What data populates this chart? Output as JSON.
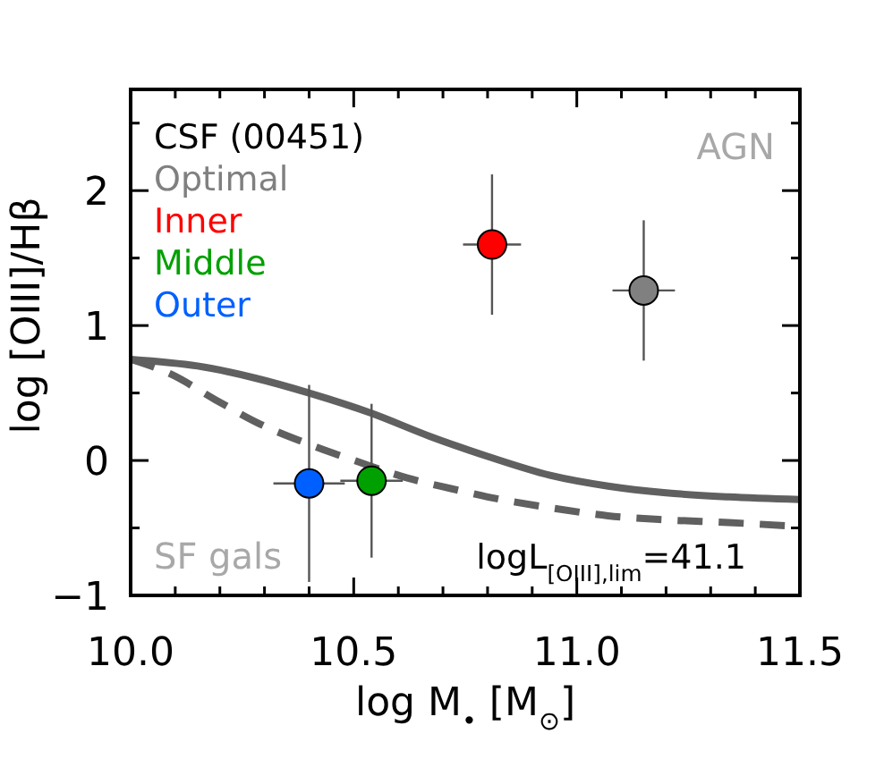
{
  "chart_data": {
    "type": "scatter",
    "xlabel": "log M$_{•}$ [M$_{⊙}$]",
    "ylabel": "log [OIII]/Hβ",
    "xlim": [
      10,
      11.5
    ],
    "ylim": [
      -1,
      2.75
    ],
    "xticks": [
      {
        "value": 10,
        "label": "10.0"
      },
      {
        "value": 10.1,
        "label": null
      },
      {
        "value": 10.2,
        "label": null
      },
      {
        "value": 10.3,
        "label": null
      },
      {
        "value": 10.4,
        "label": null
      },
      10.5,
      {
        "value": 10.6,
        "label": null
      },
      {
        "value": 10.7,
        "label": null
      },
      {
        "value": 10.8,
        "label": null
      },
      {
        "value": 10.9,
        "label": null
      },
      {
        "value": 11,
        "label": "11.0"
      },
      {
        "value": 11.1,
        "label": null
      },
      {
        "value": 11.2,
        "label": null
      },
      {
        "value": 11.3,
        "label": null
      },
      {
        "value": 11.4,
        "label": null
      },
      11.5
    ],
    "yticks": [
      {
        "value": -1,
        "label": "−1"
      },
      {
        "value": -0.5,
        "label": null
      },
      0,
      {
        "value": 0.5,
        "label": null
      },
      1,
      {
        "value": 1.5,
        "label": null
      },
      2,
      {
        "value": 2.5,
        "label": null
      }
    ],
    "marker": "circle",
    "legend": "top left",
    "legend_title": "CSF (00451)",
    "annotations": [
      "AGN",
      "SF gals",
      "logL$_{[OIII],lim}$=41.1"
    ],
    "series": [
      {
        "type": "line",
        "color": "#606060",
        "line_style": "solid",
        "marker": "none",
        "x": [
          10.0,
          10.15,
          10.28,
          10.4,
          10.54,
          10.67,
          10.8,
          10.94,
          11.07,
          11.2,
          11.34,
          11.5
        ],
        "values": [
          0.75,
          0.7,
          0.61,
          0.5,
          0.35,
          0.18,
          0.03,
          -0.11,
          -0.19,
          -0.24,
          -0.27,
          -0.29
        ]
      },
      {
        "type": "line",
        "color": "#606060",
        "line_style": "dashed",
        "marker": "none",
        "x": [
          10.0,
          10.09,
          10.19,
          10.29,
          10.4,
          10.51,
          10.62,
          10.72,
          10.8,
          10.94,
          11.07,
          11.2,
          11.34,
          11.5
        ],
        "values": [
          0.75,
          0.64,
          0.45,
          0.27,
          0.12,
          -0.01,
          -0.13,
          -0.21,
          -0.27,
          -0.35,
          -0.41,
          -0.44,
          -0.46,
          -0.49
        ]
      },
      {
        "name": "Optimal",
        "color": "#808080",
        "x": [
          11.15
        ],
        "values": [
          1.26
        ],
        "errors": [
          0.52
        ],
        "xerrors": [
          0.07
        ]
      },
      {
        "name": "Inner",
        "color": "#ff0000",
        "x": [
          10.81
        ],
        "values": [
          1.6
        ],
        "errors": [
          0.52
        ],
        "xerrors": [
          0.065
        ]
      },
      {
        "name": "Middle",
        "color": "#00a000",
        "x": [
          10.54
        ],
        "values": [
          -0.15
        ],
        "errors": [
          0.57
        ],
        "xerrors": [
          0.07
        ]
      },
      {
        "name": "Outer",
        "color": "#0060ff",
        "x": [
          10.4
        ],
        "values": [
          -0.17
        ],
        "errors": [
          0.73
        ],
        "xerrors": [
          0.08
        ]
      }
    ]
  }
}
